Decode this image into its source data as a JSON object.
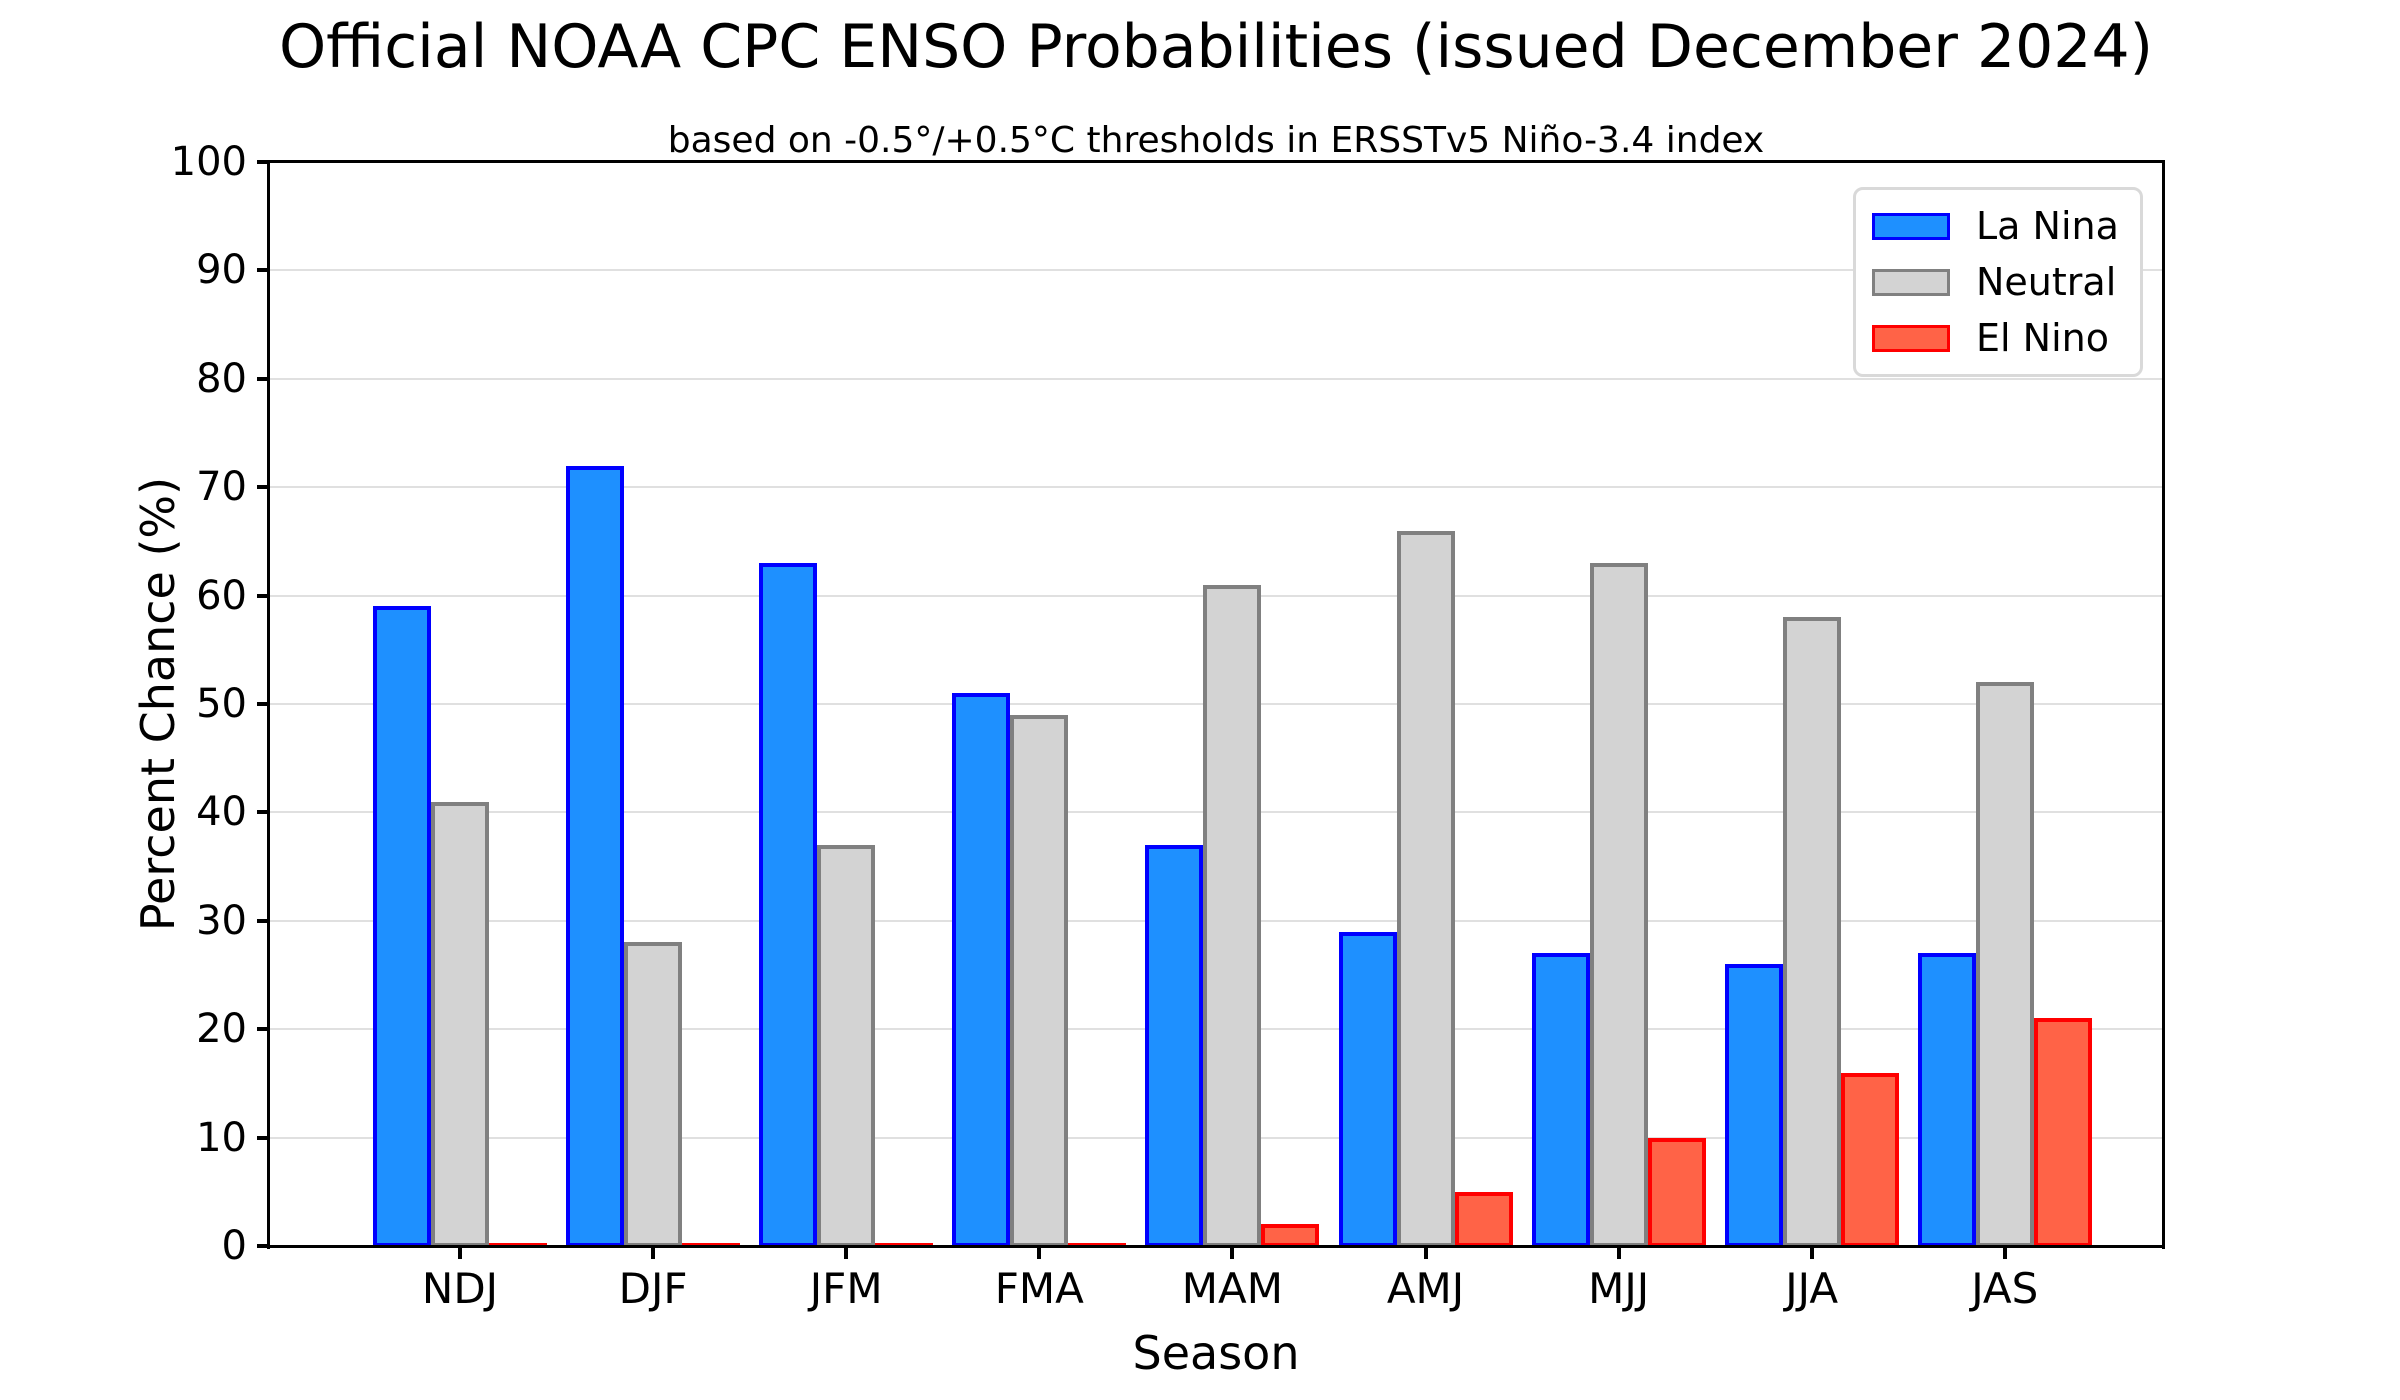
{
  "chart_data": {
    "type": "bar",
    "title": "Official NOAA CPC ENSO Probabilities (issued December 2024)",
    "subtitle": "based on -0.5°/+0.5°C thresholds in ERSSTv5 Niño-3.4 index",
    "xlabel": "Season",
    "ylabel": "Percent Chance (%)",
    "categories": [
      "NDJ",
      "DJF",
      "JFM",
      "FMA",
      "MAM",
      "AMJ",
      "MJJ",
      "JJA",
      "JAS"
    ],
    "series": [
      {
        "name": "La Nina",
        "fill_color": "#1E90FF",
        "edge_color": "#0000FF",
        "values": [
          59,
          72,
          63,
          51,
          37,
          29,
          27,
          26,
          27
        ]
      },
      {
        "name": "Neutral",
        "fill_color": "#D3D3D3",
        "edge_color": "#808080",
        "values": [
          41,
          28,
          37,
          49,
          61,
          66,
          63,
          58,
          52
        ]
      },
      {
        "name": "El Nino",
        "fill_color": "#FF6347",
        "edge_color": "#FF0000",
        "values": [
          0,
          0,
          0,
          0,
          2,
          5,
          10,
          16,
          21
        ]
      }
    ],
    "ylim": [
      0,
      100
    ],
    "yticks": [
      0,
      10,
      20,
      30,
      40,
      50,
      60,
      70,
      80,
      90,
      100
    ],
    "grid": true,
    "grid_color": "#e0e0e0",
    "legend_position": "upper right",
    "legend_entries": [
      "La Nina",
      "Neutral",
      "El Nino"
    ]
  }
}
